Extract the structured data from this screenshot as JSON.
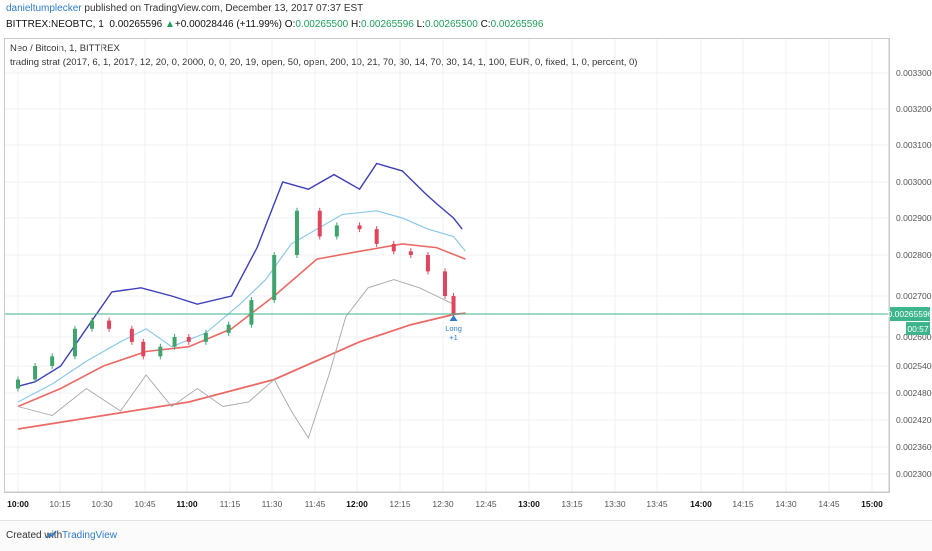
{
  "header": {
    "author": "danieltumplecker",
    "published_text": " published on TradingView.com, December 13, 2017 07:37 EST",
    "symbol": "BITTREX:NEOBTC, 1",
    "last": "0.00265596",
    "change": "+0.00028446 (+11.99%)",
    "o_label": "O:",
    "o_val": "0.00265500",
    "h_label": "H:",
    "h_val": "0.00265596",
    "l_label": "L:",
    "l_val": "0.00265500",
    "c_label": "C:",
    "c_val": "0.00265596"
  },
  "legend": {
    "series_title": "Neo / Bitcoin, 1, BITTREX",
    "strategy": "trading strat (2017, 6, 1, 2017, 12, 20, 0, 2000, 0, 0, 20, 19, open, 50, open, 200, 10, 21, 70, 30, 14, 70, 30, 14, 1, 100, EUR, 0, fixed, 1, 0, percent, 0)"
  },
  "footer": {
    "created_with": "Created with",
    "brand": "TradingView"
  },
  "colors": {
    "bull": "#3fa36d",
    "bear": "#e0455d",
    "upper_band": "#3f3fb8",
    "lower_band": "#8cc9ea",
    "ema50": "#ec6a66",
    "ema200": "#ec6a66",
    "rsi_line": "#a7a7a7",
    "price_line": "#3cb48c",
    "price_tag": "#3cb48c",
    "timer_tag": "#3cb48c",
    "marker": "#2f7dc8"
  },
  "chart_data": {
    "type": "candlestick",
    "y_axis": {
      "ticks": [
        "0.00330000",
        "0.00320000",
        "0.00310000",
        "0.00300000",
        "0.00290000",
        "0.00280000",
        "0.00270000",
        "0.00260000",
        "0.00254000",
        "0.00248000",
        "0.00242000",
        "0.00236000",
        "0.00230000"
      ],
      "current_price_tag": "0.00265596",
      "timer_tag": "00:57"
    },
    "x_axis": {
      "ticks": [
        "10:00",
        "10:15",
        "10:30",
        "10:45",
        "11:00",
        "11:15",
        "11:30",
        "11:45",
        "12:00",
        "12:15",
        "12:30",
        "12:45",
        "13:00",
        "13:15",
        "13:30",
        "13:45",
        "14:00",
        "14:15",
        "14:30",
        "14:45",
        "15:00"
      ],
      "bold": [
        "10:00",
        "11:00",
        "12:00",
        "13:00",
        "14:00",
        "15:00"
      ]
    },
    "candles": [
      [
        "10:00",
        0.00249,
        0.00251
      ],
      [
        "10:06",
        0.00251,
        0.00254
      ],
      [
        "10:12",
        0.00254,
        0.00256
      ],
      [
        "10:20",
        0.00256,
        0.00262
      ],
      [
        "10:26",
        0.00262,
        0.00264
      ],
      [
        "10:32",
        0.00264,
        0.00262
      ],
      [
        "10:40",
        0.00262,
        0.00259
      ],
      [
        "10:44",
        0.00259,
        0.00256
      ],
      [
        "10:50",
        0.00256,
        0.00258
      ],
      [
        "10:55",
        0.00258,
        0.0026
      ],
      [
        "11:00",
        0.0026,
        0.00259
      ],
      [
        "11:06",
        0.00259,
        0.00261
      ],
      [
        "11:14",
        0.00261,
        0.00263
      ],
      [
        "11:22",
        0.00263,
        0.00269
      ],
      [
        "11:30",
        0.00269,
        0.0028
      ],
      [
        "11:38",
        0.0028,
        0.00292
      ],
      [
        "11:46",
        0.00292,
        0.00285
      ],
      [
        "11:52",
        0.00285,
        0.00288
      ],
      [
        "12:00",
        0.00288,
        0.00287
      ],
      [
        "12:06",
        0.00287,
        0.00283
      ],
      [
        "12:12",
        0.00283,
        0.00281
      ],
      [
        "12:18",
        0.00281,
        0.0028
      ],
      [
        "12:24",
        0.0028,
        0.00276
      ],
      [
        "12:30",
        0.00276,
        0.0027
      ],
      [
        "12:33",
        0.0027,
        0.002656
      ]
    ],
    "series": [
      {
        "name": "upper_band",
        "values": [
          [
            10,
            0.002495
          ],
          [
            10.1,
            0.002505
          ],
          [
            10.25,
            0.00254
          ],
          [
            10.4,
            0.00262
          ],
          [
            10.55,
            0.00271
          ],
          [
            10.72,
            0.00272
          ],
          [
            10.9,
            0.0027
          ],
          [
            11.05,
            0.00268
          ],
          [
            11.25,
            0.0027
          ],
          [
            11.4,
            0.00282
          ],
          [
            11.55,
            0.003
          ],
          [
            11.7,
            0.00298
          ],
          [
            11.85,
            0.00302
          ],
          [
            12.0,
            0.00298
          ],
          [
            12.1,
            0.00305
          ],
          [
            12.25,
            0.00303
          ],
          [
            12.38,
            0.00297
          ],
          [
            12.45,
            0.00294
          ],
          [
            12.55,
            0.0029
          ],
          [
            12.6,
            0.00287
          ]
        ]
      },
      {
        "name": "lower_band",
        "values": [
          [
            10,
            0.00246
          ],
          [
            10.2,
            0.0025
          ],
          [
            10.4,
            0.00255
          ],
          [
            10.6,
            0.00259
          ],
          [
            10.75,
            0.00262
          ],
          [
            10.9,
            0.00258
          ],
          [
            11.1,
            0.00261
          ],
          [
            11.3,
            0.00268
          ],
          [
            11.45,
            0.00274
          ],
          [
            11.6,
            0.00283
          ],
          [
            11.75,
            0.00287
          ],
          [
            11.9,
            0.00291
          ],
          [
            12.1,
            0.00292
          ],
          [
            12.25,
            0.0029
          ],
          [
            12.4,
            0.00287
          ],
          [
            12.55,
            0.00285
          ],
          [
            12.62,
            0.00281
          ]
        ]
      },
      {
        "name": "ema50",
        "values": [
          [
            10,
            0.00245
          ],
          [
            10.25,
            0.00249
          ],
          [
            10.5,
            0.00254
          ],
          [
            10.75,
            0.00257
          ],
          [
            11.0,
            0.00258
          ],
          [
            11.25,
            0.00262
          ],
          [
            11.5,
            0.0027
          ],
          [
            11.75,
            0.00279
          ],
          [
            12.0,
            0.00281
          ],
          [
            12.25,
            0.00283
          ],
          [
            12.45,
            0.00282
          ],
          [
            12.62,
            0.00279
          ]
        ]
      },
      {
        "name": "ema200",
        "values": [
          [
            10,
            0.0024
          ],
          [
            10.5,
            0.00243
          ],
          [
            11.0,
            0.00246
          ],
          [
            11.5,
            0.00251
          ],
          [
            12.0,
            0.00259
          ],
          [
            12.3,
            0.00263
          ],
          [
            12.55,
            0.002655
          ],
          [
            12.62,
            0.002658
          ]
        ]
      },
      {
        "name": "rsi_line",
        "values": [
          [
            10,
            0.00245
          ],
          [
            10.2,
            0.00243
          ],
          [
            10.4,
            0.00249
          ],
          [
            10.6,
            0.00244
          ],
          [
            10.75,
            0.00252
          ],
          [
            10.9,
            0.00245
          ],
          [
            11.05,
            0.00249
          ],
          [
            11.2,
            0.00245
          ],
          [
            11.35,
            0.00246
          ],
          [
            11.5,
            0.00251
          ],
          [
            11.6,
            0.00244
          ],
          [
            11.7,
            0.00238
          ],
          [
            11.82,
            0.00252
          ],
          [
            11.92,
            0.00265
          ],
          [
            12.05,
            0.00272
          ],
          [
            12.2,
            0.00274
          ],
          [
            12.35,
            0.00272
          ],
          [
            12.45,
            0.0027
          ],
          [
            12.55,
            0.00268
          ]
        ]
      }
    ],
    "markers": [
      {
        "label_1": "Long",
        "label_2": "+1",
        "x": "12:33",
        "price": 0.002656
      }
    ]
  }
}
